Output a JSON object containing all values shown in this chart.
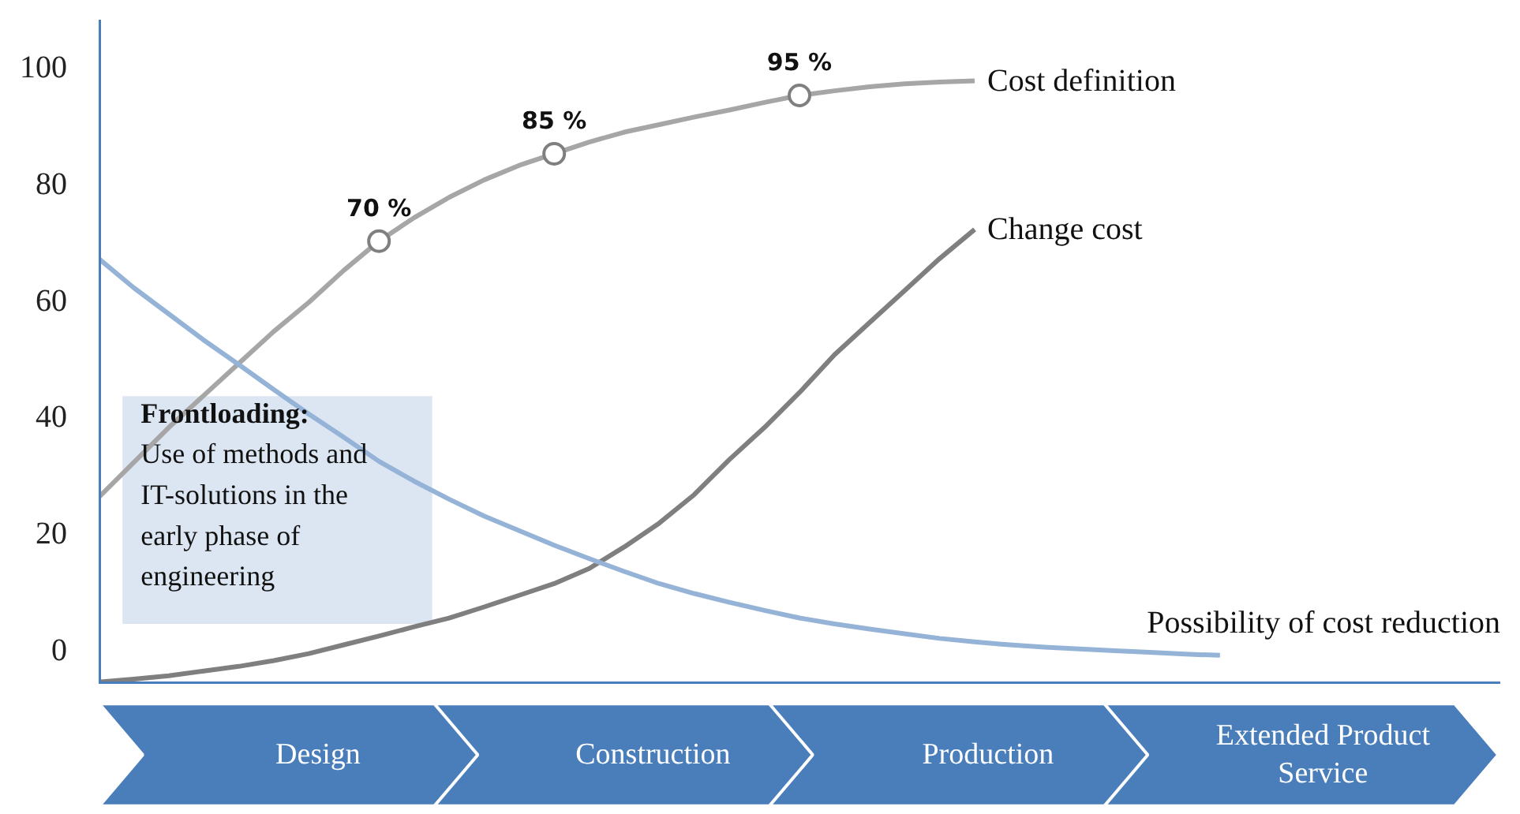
{
  "chart_data": {
    "type": "line",
    "ylim": [
      -6,
      108
    ],
    "yticks": [
      0,
      20,
      40,
      60,
      80,
      100
    ],
    "tick_labels": "y",
    "grid": false,
    "categories": [
      null,
      null,
      null,
      null,
      null,
      null,
      null,
      null,
      null,
      null,
      null,
      null,
      null,
      null,
      null,
      null,
      null,
      null,
      null,
      null,
      null,
      null,
      null,
      null,
      null,
      null,
      null,
      null,
      null,
      null,
      null,
      null,
      null,
      null,
      null,
      null,
      null,
      null,
      null,
      null,
      null
    ],
    "series": [
      {
        "name": "Cost definition",
        "color": "#a6a6a6",
        "values": [
          26,
          32,
          38,
          43.5,
          49,
          54.5,
          59.5,
          65,
          70,
          74,
          77.5,
          80.5,
          83,
          85,
          87,
          88.7,
          90,
          91.3,
          92.5,
          93.8,
          95,
          95.8,
          96.5,
          97,
          97.3,
          97.5,
          null,
          null,
          null,
          null,
          null,
          null,
          null,
          null,
          null,
          null,
          null,
          null,
          null,
          null,
          null
        ]
      },
      {
        "name": "Change cost",
        "color": "#7f7f7f",
        "values": [
          -5.7,
          -5.2,
          -4.6,
          -3.8,
          -3,
          -2,
          -0.8,
          0.7,
          2.2,
          3.8,
          5.3,
          7.2,
          9.2,
          11.2,
          13.8,
          17.5,
          21.6,
          26.5,
          32.5,
          38,
          44,
          50.5,
          56,
          61.5,
          67,
          72,
          null,
          null,
          null,
          null,
          null,
          null,
          null,
          null,
          null,
          null,
          null,
          null,
          null,
          null,
          null
        ]
      },
      {
        "name": "Possibility of cost reduction",
        "color": "#95b3d7",
        "values": [
          67,
          62,
          57.5,
          53,
          48.8,
          44.5,
          40.3,
          36.3,
          32.2,
          28.8,
          25.7,
          22.8,
          20.3,
          17.8,
          15.5,
          13.3,
          11.2,
          9.5,
          8,
          6.6,
          5.3,
          4.3,
          3.4,
          2.6,
          1.8,
          1.2,
          0.7,
          0.3,
          0,
          -0.3,
          -0.6,
          -0.9,
          -1.1,
          null,
          null,
          null,
          null,
          null,
          null,
          null,
          null
        ]
      },
      {
        "type": "scatter",
        "marker": "circle",
        "color": "#7f7f7f",
        "values": [
          null,
          null,
          null,
          null,
          null,
          null,
          null,
          null,
          70,
          null,
          null,
          null,
          null,
          85,
          null,
          null,
          null,
          null,
          null,
          null,
          95,
          null,
          null,
          null,
          null,
          null,
          null,
          null,
          null,
          null,
          null,
          null,
          null,
          null,
          null,
          null,
          null,
          null,
          null,
          null,
          null
        ],
        "value_labels": [
          null,
          null,
          null,
          null,
          null,
          null,
          null,
          null,
          "70 %",
          null,
          null,
          null,
          null,
          "85 %",
          null,
          null,
          null,
          null,
          null,
          null,
          "95 %",
          null,
          null,
          null,
          null,
          null,
          null,
          null,
          null,
          null,
          null,
          null,
          null,
          null,
          null,
          null,
          null,
          null,
          null,
          null,
          null
        ]
      }
    ],
    "annotations": [
      "Frontloading:",
      "Use of methods and IT-solutions in the early phase of engineering",
      "Design",
      "Construction",
      "Production",
      "Extended Product Service"
    ]
  }
}
